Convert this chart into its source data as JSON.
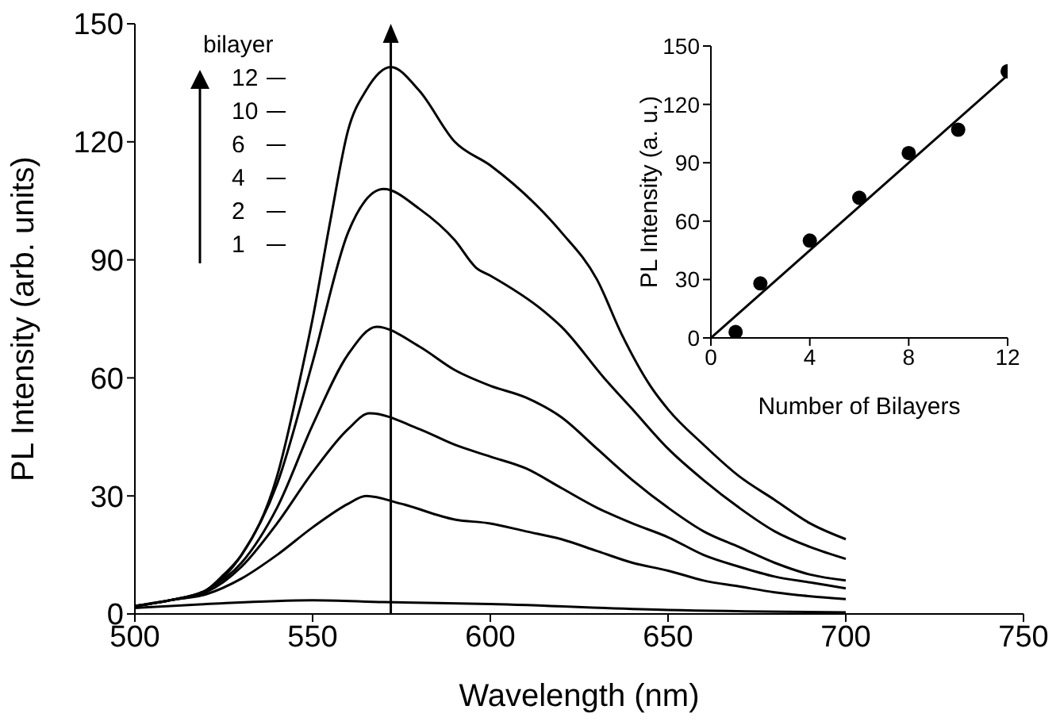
{
  "chart_data": [
    {
      "type": "line",
      "xlabel": "Wavelength (nm)",
      "ylabel": "PL Intensity (arb. units)",
      "legend_title": "bilayer",
      "legend": "top left",
      "xlim": [
        500,
        750
      ],
      "xticks": [
        500,
        550,
        600,
        650,
        700,
        750
      ],
      "ylim": [
        0,
        150
      ],
      "yticks": [
        0,
        30,
        60,
        90,
        120,
        150
      ],
      "ref_lines": [
        {
          "axis": "x",
          "value": 572,
          "color": "#000000"
        }
      ],
      "series": [
        {
          "name": "12",
          "color": "#000000",
          "x": [
            500,
            510,
            520,
            525,
            530,
            540,
            547,
            550,
            555,
            560,
            565,
            572,
            580,
            590,
            600,
            615,
            620,
            630,
            637,
            645,
            650,
            660,
            670,
            680,
            690,
            700
          ],
          "values": [
            2,
            3.5,
            6,
            10,
            15,
            35,
            62,
            75,
            100,
            123,
            133,
            139,
            133,
            120,
            114,
            102,
            97,
            85,
            71,
            58,
            52,
            43,
            35,
            29,
            23,
            19
          ]
        },
        {
          "name": "10",
          "color": "#000000",
          "x": [
            500,
            510,
            520,
            530,
            540,
            550,
            560,
            570,
            580,
            590,
            596,
            600,
            615,
            620,
            632,
            640,
            650,
            660,
            670,
            680,
            690,
            700
          ],
          "values": [
            2,
            3.5,
            6,
            15,
            33,
            64,
            97,
            108,
            103,
            95,
            88,
            86,
            77,
            73,
            60,
            52,
            42,
            34,
            27,
            21,
            17,
            14
          ]
        },
        {
          "name": "6",
          "color": "#000000",
          "x": [
            500,
            510,
            520,
            530,
            540,
            550,
            560,
            568,
            580,
            590,
            600,
            610,
            620,
            630,
            640,
            650,
            660,
            670,
            680,
            690,
            700
          ],
          "values": [
            2,
            3.5,
            6,
            13,
            27,
            48,
            66,
            73,
            68,
            62,
            58,
            55,
            50,
            42,
            34,
            27,
            21,
            17,
            13,
            10,
            8.5
          ]
        },
        {
          "name": "4",
          "color": "#000000",
          "x": [
            500,
            510,
            520,
            530,
            540,
            550,
            560,
            566,
            580,
            590,
            600,
            610,
            620,
            630,
            640,
            650,
            660,
            670,
            680,
            690,
            700
          ],
          "values": [
            2,
            3.5,
            5.5,
            12,
            23,
            36,
            47,
            51,
            47,
            43,
            40,
            37,
            32,
            27,
            23,
            19.5,
            15,
            12,
            9.5,
            8,
            6.5
          ]
        },
        {
          "name": "2",
          "color": "#000000",
          "x": [
            500,
            510,
            520,
            530,
            540,
            550,
            560,
            565,
            575,
            590,
            600,
            610,
            620,
            630,
            640,
            650,
            660,
            670,
            680,
            690,
            700
          ],
          "values": [
            2,
            3.5,
            5,
            9,
            15,
            22,
            28,
            30,
            28,
            24,
            23,
            21,
            19,
            16,
            13,
            11,
            8.5,
            7,
            5.5,
            4.5,
            3.8
          ]
        },
        {
          "name": "1",
          "color": "#000000",
          "x": [
            500,
            520,
            550,
            570,
            600,
            650,
            700
          ],
          "values": [
            1.5,
            2.5,
            3.5,
            3,
            2.5,
            1,
            0.4
          ]
        }
      ]
    },
    {
      "type": "scatter",
      "xlabel": "Number of Bilayers",
      "ylabel": "PL Intensity (a. u.)",
      "xlim": [
        0,
        12
      ],
      "xticks": [
        0,
        4,
        8,
        12
      ],
      "ylim": [
        0,
        150
      ],
      "yticks": [
        0,
        30,
        60,
        90,
        120,
        150
      ],
      "series": [
        {
          "marker": "circle",
          "color": "#000000",
          "x": [
            1,
            2,
            4,
            6,
            8,
            10,
            12
          ],
          "values": [
            3,
            28,
            50,
            72,
            95,
            107,
            137
          ]
        },
        {
          "type": "line",
          "color": "#000000",
          "x": [
            0,
            12
          ],
          "values": [
            0,
            135
          ]
        }
      ]
    }
  ]
}
